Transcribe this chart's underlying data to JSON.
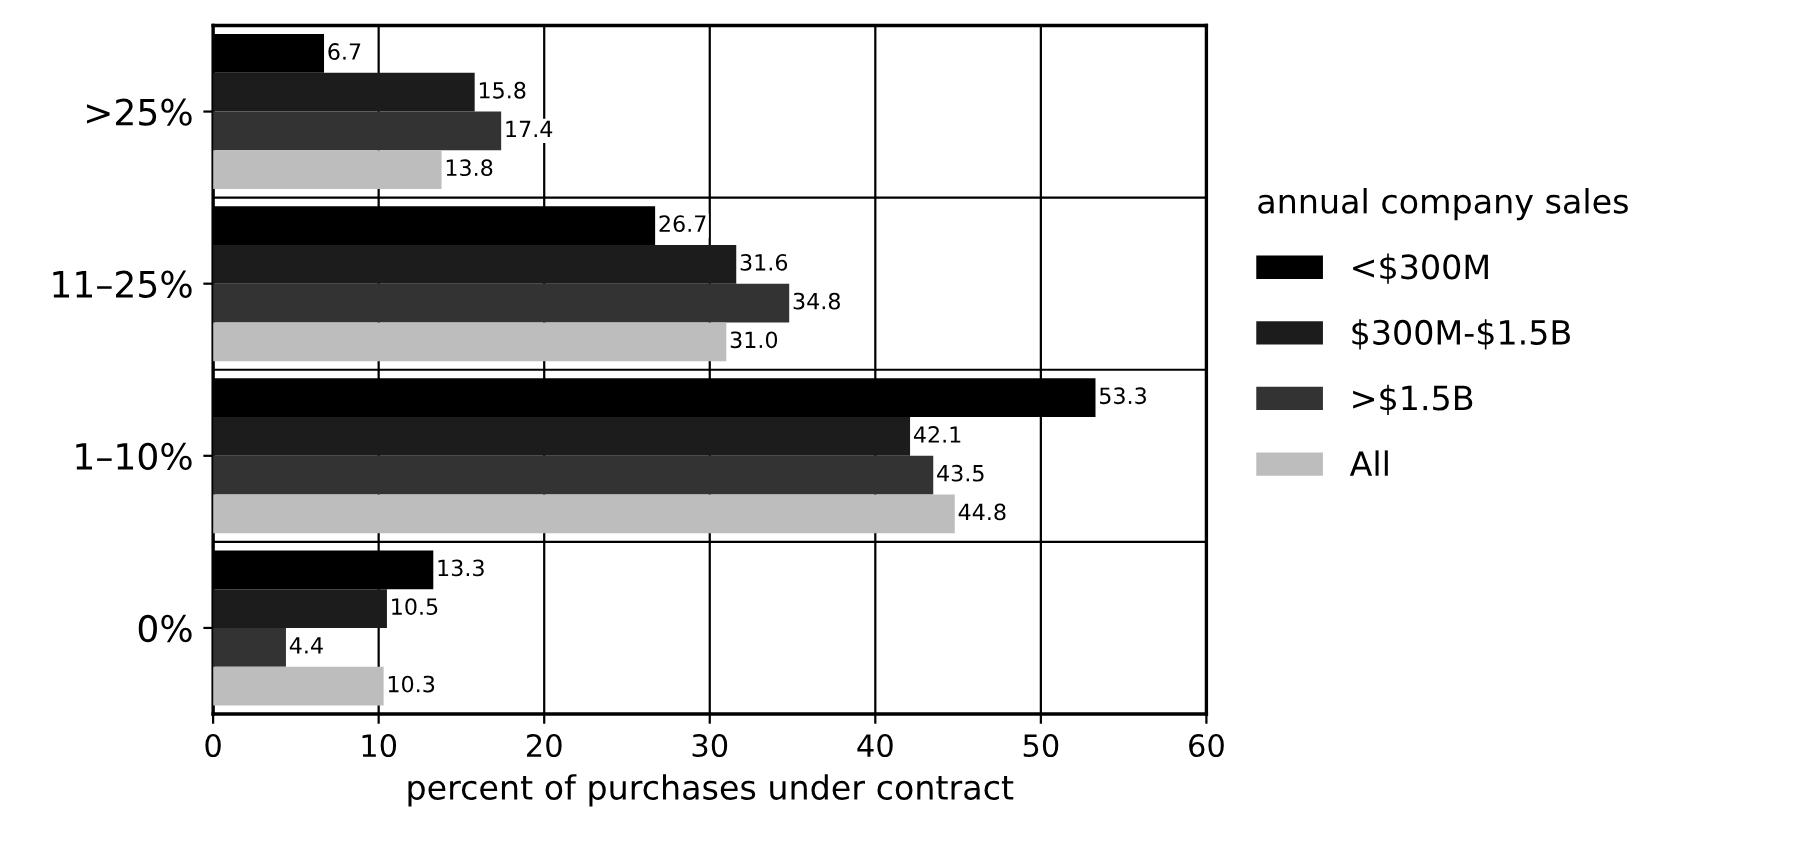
{
  "chart_data": {
    "type": "bar",
    "orientation": "horizontal",
    "xlabel": "percent of purchases under contract",
    "legend_title": "annual company sales",
    "categories": [
      ">25%",
      "11–25%",
      "1–10%",
      "0%"
    ],
    "series": [
      {
        "name": "<$300M",
        "color": "#000000",
        "values": [
          6.7,
          26.7,
          53.3,
          13.3
        ],
        "value_labels": [
          "6.7",
          "26.7",
          "53.3",
          "13.3"
        ]
      },
      {
        "name": "$300M-$1.5B",
        "color": "#1c1c1c",
        "values": [
          15.8,
          31.6,
          42.1,
          10.5
        ],
        "value_labels": [
          "15.8",
          "31.6",
          "42.1",
          "10.5"
        ]
      },
      {
        "name": ">$1.5B",
        "color": "#333333",
        "values": [
          17.4,
          34.8,
          43.5,
          4.4
        ],
        "value_labels": [
          "17.4",
          "34.8",
          "43.5",
          "4.4"
        ]
      },
      {
        "name": "All",
        "color": "#bdbdbd",
        "values": [
          13.8,
          31.0,
          44.8,
          10.3
        ],
        "value_labels": [
          "13.8",
          "31.0",
          "44.8",
          "10.3"
        ]
      }
    ],
    "xlim": [
      0,
      60
    ],
    "xticks": [
      0,
      10,
      20,
      30,
      40,
      50,
      60
    ],
    "grid": true,
    "legend": "right"
  }
}
